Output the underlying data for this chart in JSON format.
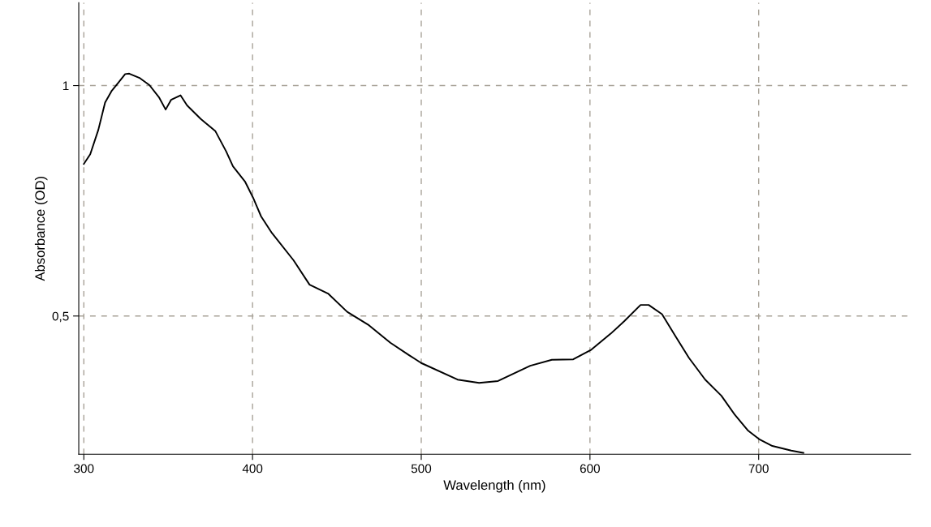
{
  "chart_data": {
    "type": "line",
    "xlabel": "Wavelength (nm)",
    "ylabel": "Absorbance (OD)",
    "xlim": [
      297,
      790
    ],
    "ylim": [
      0.2,
      1.18
    ],
    "xticks": [
      300,
      400,
      500,
      600,
      700
    ],
    "yticks": [
      {
        "value": 0.5,
        "label": "0,5"
      },
      {
        "value": 1,
        "label": "1"
      }
    ],
    "grid": true,
    "line_style": "solid",
    "series": [
      {
        "color": "#000000",
        "x": [
          300,
          303.8,
          308.6,
          312.6,
          316.6,
          320.6,
          324.5,
          326.9,
          333.3,
          338.9,
          344.5,
          348.5,
          351.7,
          357.3,
          361.2,
          369.2,
          378,
          384.4,
          388.4,
          395.5,
          400.3,
          405.1,
          411.5,
          424.3,
          433.8,
          445,
          456.1,
          469,
          481.7,
          492.8,
          500,
          521.5,
          534.3,
          545.5,
          564.6,
          577.4,
          590.1,
          600.8,
          612.4,
          620.4,
          630,
          634.8,
          642.7,
          650.7,
          658.7,
          668.3,
          677.9,
          685.8,
          693.8,
          700.2,
          708.1,
          719.3,
          726.5
        ],
        "values": [
          0.83,
          0.851,
          0.904,
          0.963,
          0.989,
          1.007,
          1.025,
          1.026,
          1.016,
          1.001,
          0.975,
          0.948,
          0.969,
          0.979,
          0.957,
          0.928,
          0.901,
          0.857,
          0.825,
          0.792,
          0.757,
          0.716,
          0.68,
          0.621,
          0.568,
          0.548,
          0.509,
          0.48,
          0.442,
          0.415,
          0.398,
          0.362,
          0.355,
          0.359,
          0.392,
          0.405,
          0.406,
          0.427,
          0.462,
          0.489,
          0.524,
          0.524,
          0.504,
          0.456,
          0.409,
          0.362,
          0.327,
          0.286,
          0.251,
          0.233,
          0.218,
          0.208,
          0.203
        ]
      }
    ]
  }
}
